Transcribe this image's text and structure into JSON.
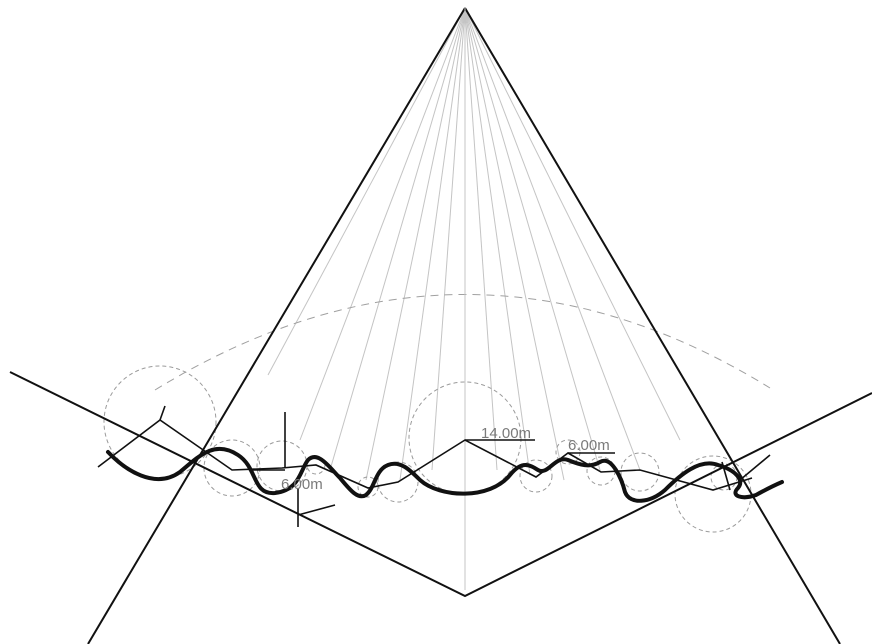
{
  "diagram": {
    "dimension_labels": [
      {
        "id": "radius-center",
        "text": "14.00m"
      },
      {
        "id": "radius-right",
        "text": "6.00m"
      },
      {
        "id": "radius-left",
        "text": "6.00m"
      }
    ],
    "colors": {
      "background": "#ffffff",
      "main_lines": "#111111",
      "ray_lines": "#bdbdbd",
      "construction_circles": "#9a9a9a",
      "dimension_text": "#7a7a7a"
    }
  }
}
